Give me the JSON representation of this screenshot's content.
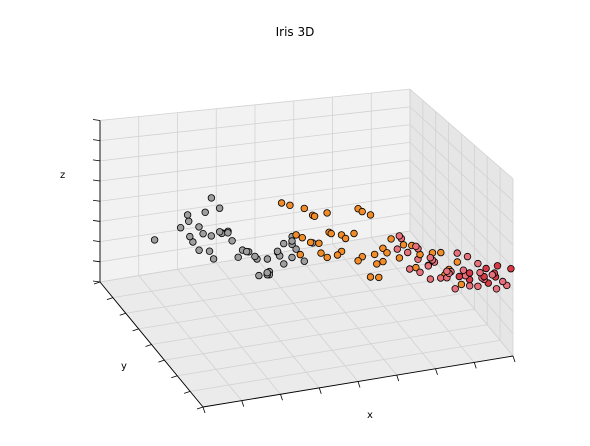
{
  "chart_data": {
    "type": "scatter",
    "title": "Iris 3D",
    "xlabel": "x",
    "ylabel": "y",
    "zlabel": "z",
    "grid": true,
    "series_colors": [
      "#9e9e9e",
      "#f28c28",
      "#e8707a"
    ],
    "strong_color": "#d63a44",
    "series": [
      {
        "points": [
          [
            0.05,
            0.3,
            0.82
          ],
          [
            0.06,
            0.18,
            0.78
          ],
          [
            0.08,
            0.28,
            0.76
          ],
          [
            0.1,
            0.22,
            0.74
          ],
          [
            0.12,
            0.34,
            0.8
          ],
          [
            0.14,
            0.26,
            0.86
          ],
          [
            0.16,
            0.4,
            0.84
          ],
          [
            0.1,
            0.44,
            0.7
          ],
          [
            0.18,
            0.2,
            0.62
          ],
          [
            0.2,
            0.36,
            0.66
          ],
          [
            0.22,
            0.5,
            0.58
          ],
          [
            0.05,
            0.62,
            0.5
          ],
          [
            0.15,
            0.58,
            0.52
          ],
          [
            0.24,
            0.44,
            0.56
          ],
          [
            0.26,
            0.6,
            0.5
          ],
          [
            0.28,
            0.3,
            0.44
          ],
          [
            0.3,
            0.48,
            0.46
          ],
          [
            0.32,
            0.58,
            0.4
          ],
          [
            0.2,
            0.7,
            0.4
          ],
          [
            0.34,
            0.4,
            0.38
          ],
          [
            0.36,
            0.64,
            0.34
          ],
          [
            0.24,
            0.76,
            0.3
          ],
          [
            0.38,
            0.52,
            0.28
          ],
          [
            0.4,
            0.7,
            0.26
          ],
          [
            0.3,
            0.84,
            0.22
          ],
          [
            0.42,
            0.62,
            0.2
          ],
          [
            0.44,
            0.8,
            0.16
          ],
          [
            0.46,
            0.74,
            0.12
          ],
          [
            0.34,
            0.92,
            0.1
          ],
          [
            0.5,
            0.88,
            0.08
          ],
          [
            0.22,
            0.88,
            0.36
          ],
          [
            0.36,
            0.3,
            0.6
          ],
          [
            0.4,
            0.22,
            0.54
          ],
          [
            0.44,
            0.46,
            0.5
          ],
          [
            0.48,
            0.58,
            0.44
          ],
          [
            0.52,
            0.7,
            0.3
          ],
          [
            0.56,
            0.96,
            0.04
          ],
          [
            0.28,
            0.66,
            0.46
          ],
          [
            0.32,
            0.72,
            0.42
          ],
          [
            0.42,
            0.36,
            0.52
          ],
          [
            0.38,
            0.42,
            0.48
          ],
          [
            0.46,
            0.52,
            0.36
          ],
          [
            0.48,
            0.66,
            0.22
          ],
          [
            0.52,
            0.82,
            0.14
          ],
          [
            0.54,
            0.56,
            0.4
          ]
        ]
      },
      {
        "points": [
          [
            0.3,
            0.14,
            0.92
          ],
          [
            0.34,
            0.18,
            0.88
          ],
          [
            0.36,
            0.1,
            0.9
          ],
          [
            0.4,
            0.12,
            0.84
          ],
          [
            0.42,
            0.2,
            0.8
          ],
          [
            0.44,
            0.08,
            0.76
          ],
          [
            0.46,
            0.16,
            0.72
          ],
          [
            0.48,
            0.24,
            0.78
          ],
          [
            0.5,
            0.12,
            0.7
          ],
          [
            0.52,
            0.22,
            0.66
          ],
          [
            0.54,
            0.08,
            0.86
          ],
          [
            0.56,
            0.18,
            0.82
          ],
          [
            0.58,
            0.28,
            0.62
          ],
          [
            0.6,
            0.14,
            0.58
          ],
          [
            0.62,
            0.24,
            0.74
          ],
          [
            0.64,
            0.1,
            0.68
          ],
          [
            0.66,
            0.2,
            0.54
          ],
          [
            0.68,
            0.3,
            0.5
          ],
          [
            0.7,
            0.16,
            0.6
          ],
          [
            0.72,
            0.26,
            0.46
          ],
          [
            0.74,
            0.12,
            0.56
          ],
          [
            0.76,
            0.22,
            0.42
          ],
          [
            0.78,
            0.32,
            0.48
          ],
          [
            0.8,
            0.18,
            0.52
          ],
          [
            0.82,
            0.28,
            0.38
          ],
          [
            0.84,
            0.14,
            0.44
          ],
          [
            0.86,
            0.24,
            0.34
          ],
          [
            0.88,
            0.34,
            0.4
          ],
          [
            0.9,
            0.2,
            0.3
          ],
          [
            0.92,
            0.3,
            0.36
          ],
          [
            0.4,
            0.3,
            0.64
          ],
          [
            0.44,
            0.36,
            0.58
          ],
          [
            0.48,
            0.4,
            0.52
          ],
          [
            0.52,
            0.44,
            0.48
          ],
          [
            0.56,
            0.38,
            0.44
          ],
          [
            0.6,
            0.46,
            0.4
          ],
          [
            0.64,
            0.42,
            0.36
          ],
          [
            0.68,
            0.5,
            0.32
          ],
          [
            0.72,
            0.48,
            0.28
          ],
          [
            0.76,
            0.54,
            0.24
          ],
          [
            0.58,
            0.6,
            0.3
          ],
          [
            0.62,
            0.66,
            0.22
          ],
          [
            0.5,
            0.56,
            0.34
          ],
          [
            0.66,
            0.36,
            0.3
          ],
          [
            0.7,
            0.4,
            0.26
          ]
        ]
      },
      {
        "points": [
          [
            0.64,
            0.02,
            0.74
          ],
          [
            0.66,
            0.06,
            0.7
          ],
          [
            0.7,
            0.04,
            0.66
          ],
          [
            0.72,
            0.08,
            0.62
          ],
          [
            0.74,
            0.02,
            0.6
          ],
          [
            0.76,
            0.06,
            0.56
          ],
          [
            0.78,
            0.1,
            0.52
          ],
          [
            0.8,
            0.04,
            0.5
          ],
          [
            0.82,
            0.08,
            0.46
          ],
          [
            0.84,
            0.12,
            0.44
          ],
          [
            0.86,
            0.06,
            0.48
          ],
          [
            0.88,
            0.1,
            0.42
          ],
          [
            0.9,
            0.14,
            0.4
          ],
          [
            0.92,
            0.08,
            0.44
          ],
          [
            0.94,
            0.12,
            0.38
          ],
          [
            0.96,
            0.16,
            0.34
          ],
          [
            0.98,
            0.1,
            0.32
          ],
          [
            0.9,
            0.04,
            0.52
          ],
          [
            0.86,
            0.02,
            0.58
          ],
          [
            0.82,
            0.0,
            0.62
          ],
          [
            0.78,
            0.14,
            0.4
          ],
          [
            0.74,
            0.12,
            0.46
          ],
          [
            0.7,
            0.1,
            0.5
          ],
          [
            0.94,
            0.02,
            0.46
          ],
          [
            0.98,
            0.04,
            0.4
          ],
          [
            0.92,
            0.18,
            0.3
          ],
          [
            0.88,
            0.2,
            0.28
          ],
          [
            0.84,
            0.22,
            0.34
          ],
          [
            0.96,
            0.22,
            0.26
          ],
          [
            1.0,
            0.06,
            0.36
          ],
          [
            0.68,
            0.16,
            0.58
          ],
          [
            0.72,
            0.18,
            0.54
          ],
          [
            0.76,
            0.2,
            0.48
          ],
          [
            0.8,
            0.22,
            0.42
          ],
          [
            0.84,
            0.16,
            0.38
          ]
        ]
      }
    ],
    "strong_points": [
      [
        0.88,
        0.06,
        0.46
      ],
      [
        0.92,
        0.02,
        0.5
      ],
      [
        0.96,
        0.06,
        0.44
      ],
      [
        0.99,
        0.14,
        0.36
      ],
      [
        0.94,
        0.1,
        0.4
      ],
      [
        0.9,
        0.12,
        0.38
      ],
      [
        0.86,
        0.1,
        0.42
      ],
      [
        1.0,
        0.02,
        0.48
      ],
      [
        0.98,
        0.18,
        0.3
      ],
      [
        0.95,
        0.0,
        0.52
      ]
    ]
  }
}
